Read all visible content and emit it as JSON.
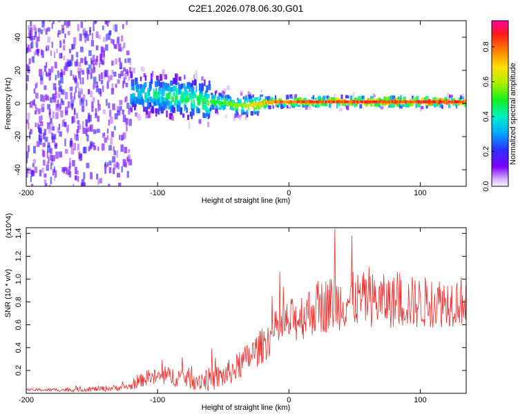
{
  "title": "C2E1.2026.078.06.30.G01",
  "chart_data": [
    {
      "type": "heatmap",
      "description_of_values": "spectrogram: normalized spectral amplitude vs height and frequency",
      "xlabel": "Height of straight line (km)",
      "ylabel": "Frequency (Hz)",
      "xlim": [
        -200,
        135
      ],
      "ylim": [
        -50,
        50
      ],
      "xticks": [
        -200,
        -100,
        0,
        100
      ],
      "yticks": [
        -40,
        -20,
        0,
        20,
        40
      ],
      "ridge": {
        "x": [
          -145,
          -130,
          -115,
          -100,
          -85,
          -70,
          -55,
          -40,
          -30,
          -20,
          -10,
          0,
          20,
          40,
          60,
          80,
          100,
          120,
          135
        ],
        "frequency_hz": [
          8,
          7,
          6,
          5,
          4,
          2,
          1,
          -1,
          -1,
          0,
          1,
          1,
          1,
          1,
          1,
          1,
          1,
          1,
          1
        ],
        "amplitude": [
          0.25,
          0.35,
          0.4,
          0.45,
          0.5,
          0.55,
          0.55,
          0.6,
          0.7,
          0.75,
          0.85,
          0.85,
          0.9,
          0.9,
          0.9,
          0.9,
          0.9,
          0.9,
          0.9
        ]
      },
      "colorbar": {
        "label": "Normalized spectral amplitude",
        "range": [
          0.0,
          0.95
        ],
        "ticks": [
          "0.0",
          "0.2",
          "0.4",
          "0.6",
          "0.8"
        ]
      }
    },
    {
      "type": "line",
      "color": "#ee2a2a",
      "xlabel": "Height of straight line (km)",
      "ylabel": "SNR (10 * v/v)",
      "multiplier_label": "(x10^4)",
      "xlim": [
        -200,
        135
      ],
      "ylim": [
        0,
        1.45
      ],
      "xticks": [
        -200,
        -100,
        0,
        100
      ],
      "yticks": [
        "0.2",
        "0.4",
        "0.6",
        "0.8",
        "1.0",
        "1.2",
        "1.4"
      ],
      "trend": {
        "x": [
          -200,
          -170,
          -140,
          -120,
          -110,
          -100,
          -90,
          -80,
          -70,
          -60,
          -50,
          -40,
          -30,
          -20,
          -10,
          0,
          10,
          20,
          30,
          40,
          50,
          60,
          70,
          80,
          90,
          100,
          110,
          120,
          135
        ],
        "y": [
          0.03,
          0.03,
          0.04,
          0.06,
          0.13,
          0.14,
          0.15,
          0.14,
          0.12,
          0.12,
          0.15,
          0.22,
          0.32,
          0.42,
          0.55,
          0.62,
          0.68,
          0.74,
          0.78,
          0.8,
          0.82,
          0.82,
          0.81,
          0.8,
          0.8,
          0.79,
          0.8,
          0.8,
          0.82
        ]
      },
      "noise_amplitude": {
        "x": [
          -200,
          -120,
          -110,
          -40,
          0,
          30,
          135
        ],
        "y": [
          0.01,
          0.03,
          0.07,
          0.12,
          0.2,
          0.25,
          0.22
        ]
      },
      "peak_annotations": [
        {
          "x": 35,
          "y": 1.44
        },
        {
          "x": 48,
          "y": 1.38
        }
      ]
    }
  ]
}
